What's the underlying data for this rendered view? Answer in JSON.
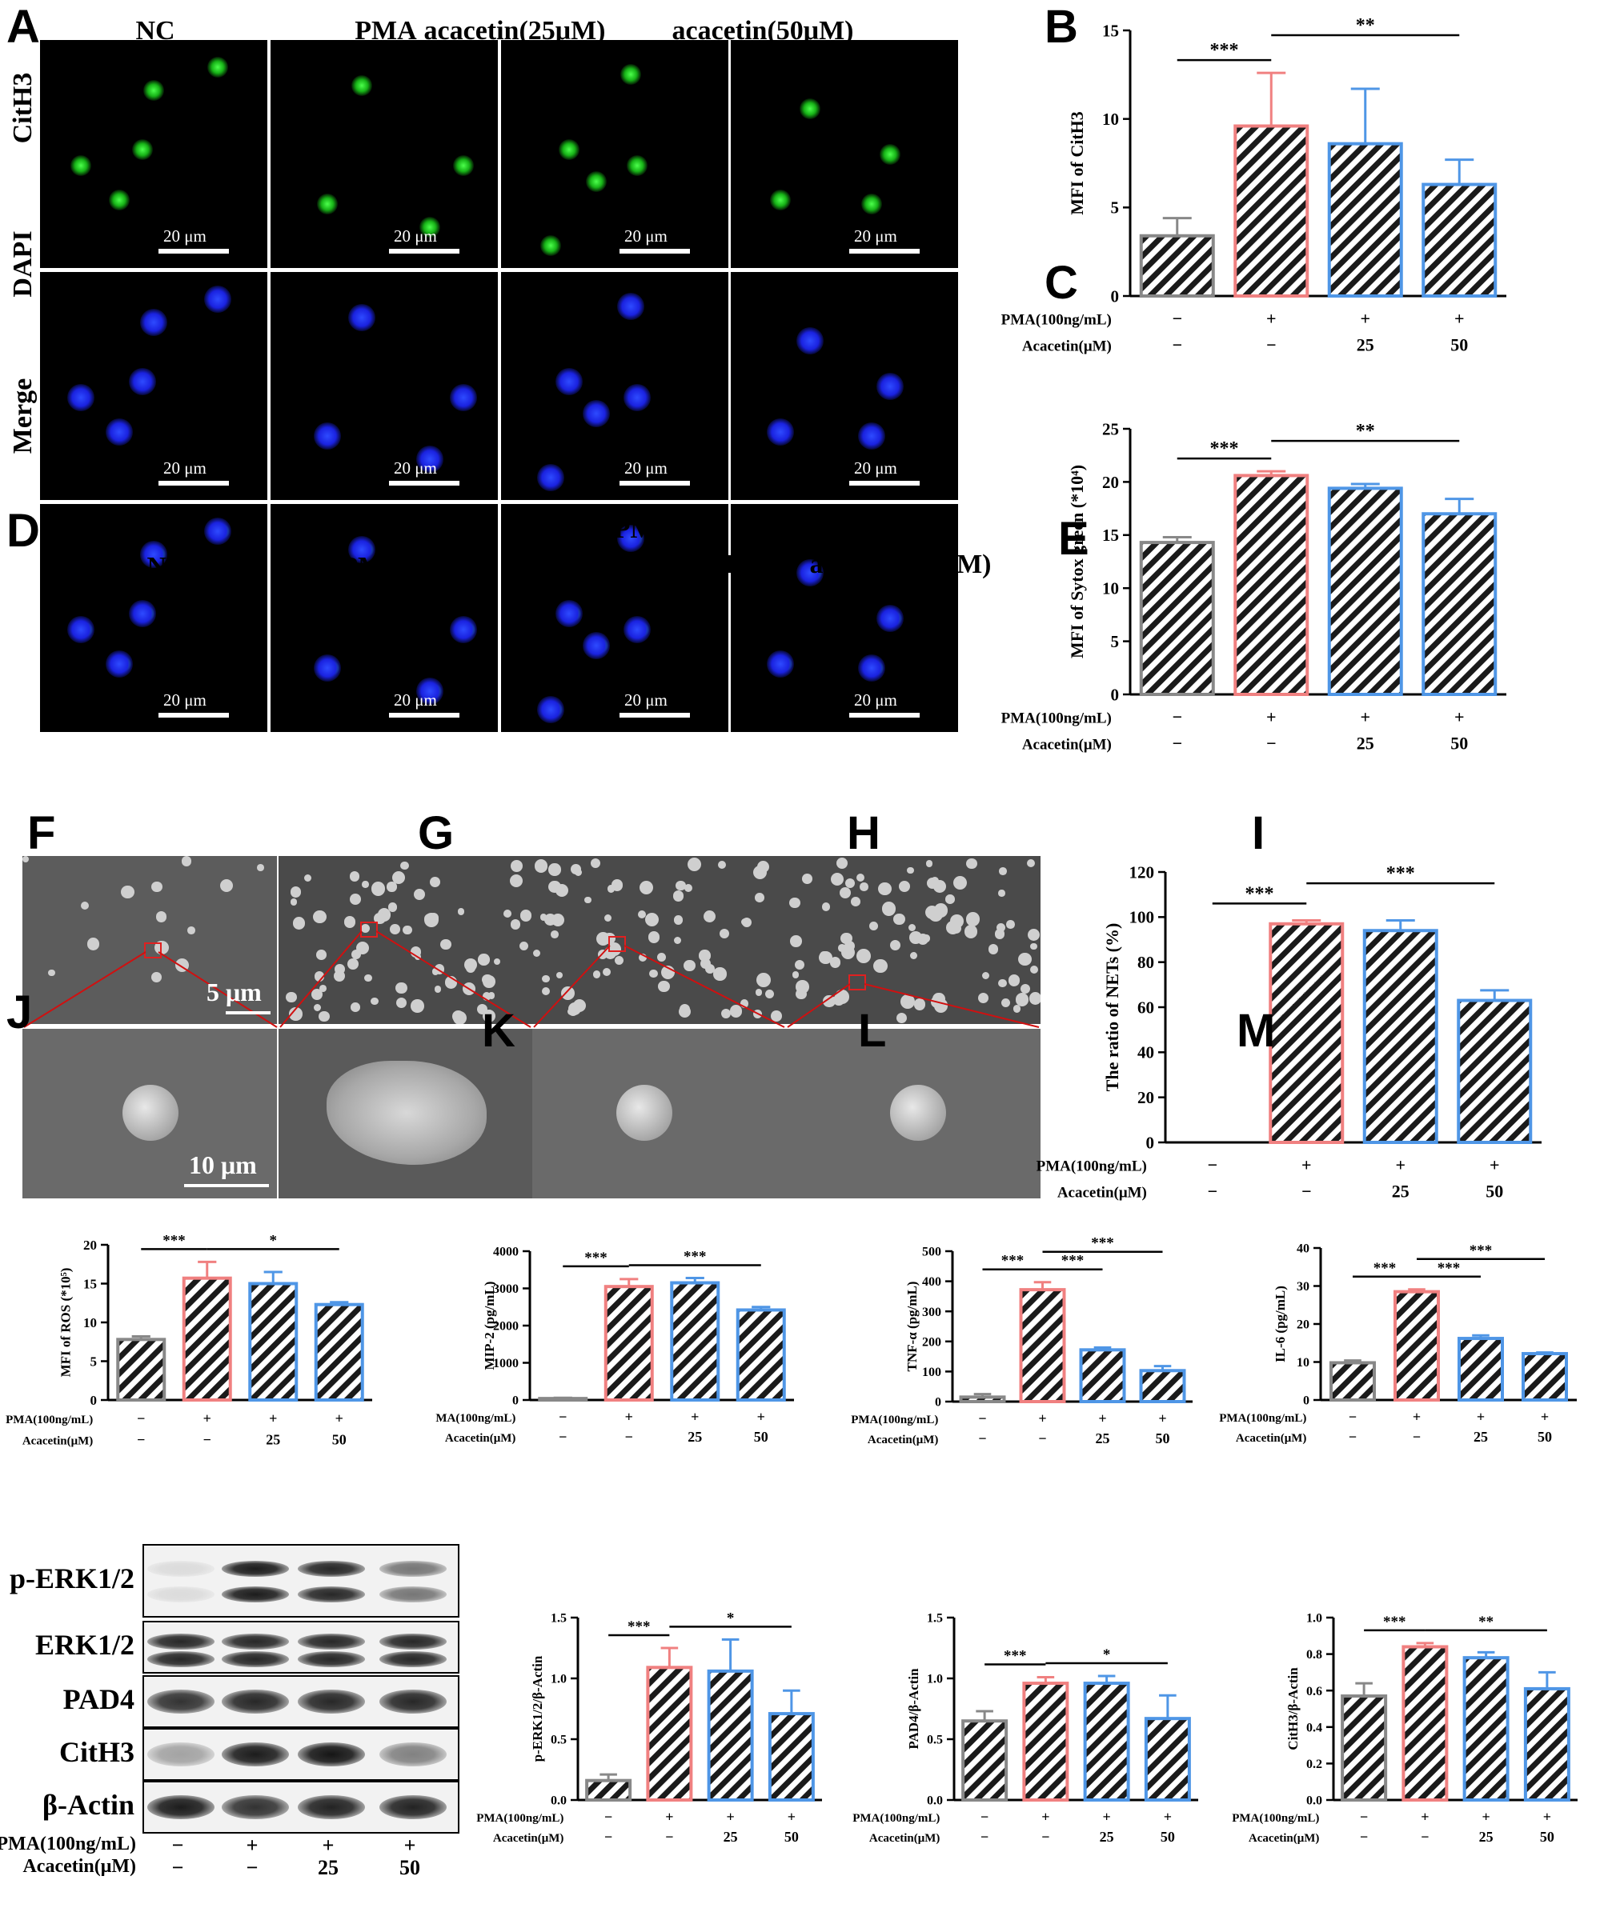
{
  "panel_labels": {
    "A": "A",
    "B": "B",
    "C": "C",
    "D": "D",
    "E": "E",
    "F": "F",
    "G": "G",
    "H": "H",
    "I": "I",
    "J": "J",
    "K": "K",
    "L": "L",
    "M": "M"
  },
  "panel_a": {
    "columns": [
      "NC",
      "PMA",
      "acacetin(25μM)",
      "acacetin(50μM)"
    ],
    "rows": [
      "CitH3",
      "DAPI",
      "Merge"
    ],
    "scale_text": "20 μm"
  },
  "panel_d": {
    "columns": [
      "NC",
      "PMA",
      "PMA+\nacacetin(25μM)",
      "PMA+\nacacetin(50μM)"
    ],
    "scale_top": "5 μm",
    "scale_bottom": "10 μm"
  },
  "panel_j": {
    "rows": [
      "p-ERK1/2",
      "ERK1/2",
      "PAD4",
      "CitH3",
      "β-Actin"
    ],
    "cond_rows": [
      {
        "label": "PMA(100ng/mL)",
        "signs": [
          "−",
          "+",
          "+",
          "+"
        ]
      },
      {
        "label": "Acacetin(μM)",
        "signs": [
          "−",
          "−",
          "25",
          "50"
        ]
      }
    ],
    "intensities": {
      "p-ERK1/2": [
        0.1,
        0.95,
        0.9,
        0.55
      ],
      "ERK1/2": [
        0.9,
        0.9,
        0.9,
        0.9
      ],
      "PAD4": [
        0.85,
        0.9,
        0.9,
        0.9
      ],
      "CitH3": [
        0.35,
        0.95,
        0.98,
        0.5
      ],
      "β-Actin": [
        0.95,
        0.85,
        0.92,
        0.92
      ]
    }
  },
  "colors": {
    "nc": "#888888",
    "pma": "#f08080",
    "acacetin": "#4f96e6"
  },
  "chart_data": [
    {
      "id": "B",
      "type": "bar",
      "ylabel": "MFI of CitH3",
      "ylim": [
        0,
        15
      ],
      "yticks": [
        0,
        5,
        10,
        15
      ],
      "values": [
        3.4,
        9.6,
        8.6,
        6.3
      ],
      "errors": [
        1.0,
        3.0,
        3.1,
        1.4
      ],
      "cond_rows": [
        {
          "label": "PMA(100ng/mL)",
          "signs": [
            "−",
            "+",
            "+",
            "+"
          ]
        },
        {
          "label": "Acacetin(μM)",
          "signs": [
            "−",
            "−",
            "25",
            "50"
          ]
        }
      ],
      "sig": [
        {
          "from": 0,
          "to": 1,
          "text": "***",
          "level": 0
        },
        {
          "from": 1,
          "to": 3,
          "text": "**",
          "level": 1
        }
      ]
    },
    {
      "id": "C",
      "type": "bar",
      "ylabel": "MFI of Sytox green (*10⁴)",
      "ylim": [
        0,
        25
      ],
      "yticks": [
        0,
        5,
        10,
        15,
        20,
        25
      ],
      "values": [
        14.3,
        20.6,
        19.4,
        17.0
      ],
      "errors": [
        0.5,
        0.4,
        0.4,
        1.4
      ],
      "cond_rows": [
        {
          "label": "PMA(100ng/mL)",
          "signs": [
            "−",
            "+",
            "+",
            "+"
          ]
        },
        {
          "label": "Acacetin(μM)",
          "signs": [
            "−",
            "−",
            "25",
            "50"
          ]
        }
      ],
      "sig": [
        {
          "from": 0,
          "to": 1,
          "text": "***",
          "level": 0
        },
        {
          "from": 1,
          "to": 3,
          "text": "**",
          "level": 1
        }
      ]
    },
    {
      "id": "E",
      "type": "bar",
      "ylabel": "The ratio of NETs (%)",
      "ylim": [
        0,
        120
      ],
      "yticks": [
        0,
        20,
        40,
        60,
        80,
        100,
        120
      ],
      "values": [
        0,
        97,
        94,
        63
      ],
      "errors": [
        0,
        1.5,
        4.5,
        4.5
      ],
      "cond_rows": [
        {
          "label": "PMA(100ng/mL)",
          "signs": [
            "−",
            "+",
            "+",
            "+"
          ]
        },
        {
          "label": "Acacetin(μM)",
          "signs": [
            "−",
            "−",
            "25",
            "50"
          ]
        }
      ],
      "sig": [
        {
          "from": 0,
          "to": 1,
          "text": "***",
          "level": 0
        },
        {
          "from": 1,
          "to": 3,
          "text": "***",
          "level": 1
        }
      ]
    },
    {
      "id": "F",
      "type": "bar",
      "ylabel": "MFI of ROS (*10⁵)",
      "ylim": [
        0,
        20
      ],
      "yticks": [
        0,
        5,
        10,
        15,
        20
      ],
      "values": [
        7.8,
        15.7,
        15.0,
        12.3
      ],
      "errors": [
        0.4,
        2.1,
        1.5,
        0.3
      ],
      "cond_rows": [
        {
          "label": "PMA(100ng/mL)",
          "signs": [
            "−",
            "+",
            "+",
            "+"
          ]
        },
        {
          "label": "Acacetin(μM)",
          "signs": [
            "−",
            "−",
            "25",
            "50"
          ]
        }
      ],
      "sig": [
        {
          "from": 0,
          "to": 1,
          "text": "***",
          "level": 0
        },
        {
          "from": 1,
          "to": 3,
          "text": "*",
          "level": 0
        }
      ]
    },
    {
      "id": "G",
      "type": "bar",
      "ylabel": "MIP-2 (pg/mL)",
      "ylim": [
        0,
        4000
      ],
      "yticks": [
        0,
        1000,
        2000,
        3000,
        4000
      ],
      "values": [
        40,
        3050,
        3150,
        2420
      ],
      "errors": [
        20,
        200,
        130,
        80
      ],
      "cond_rows": [
        {
          "label": "MA(100ng/mL)",
          "signs": [
            "−",
            "+",
            "+",
            "+"
          ]
        },
        {
          "label": "Acacetin(μM)",
          "signs": [
            "−",
            "−",
            "25",
            "50"
          ]
        }
      ],
      "sig": [
        {
          "from": 0,
          "to": 1,
          "text": "***",
          "level": 0
        },
        {
          "from": 1,
          "to": 3,
          "text": "***",
          "level": 0
        }
      ]
    },
    {
      "id": "H",
      "type": "bar",
      "ylabel": "TNF-α (pg/mL)",
      "ylim": [
        0,
        500
      ],
      "yticks": [
        0,
        100,
        200,
        300,
        400,
        500
      ],
      "values": [
        15,
        372,
        172,
        103
      ],
      "errors": [
        10,
        25,
        8,
        15
      ],
      "cond_rows": [
        {
          "label": "PMA(100ng/mL)",
          "signs": [
            "−",
            "+",
            "+",
            "+"
          ]
        },
        {
          "label": "Acacetin(μM)",
          "signs": [
            "−",
            "−",
            "25",
            "50"
          ]
        }
      ],
      "sig": [
        {
          "from": 0,
          "to": 1,
          "text": "***",
          "level": 0
        },
        {
          "from": 1,
          "to": 2,
          "text": "***",
          "level": 0
        },
        {
          "from": 1,
          "to": 3,
          "text": "***",
          "level": 1
        }
      ]
    },
    {
      "id": "I",
      "type": "bar",
      "ylabel": "IL-6 (pg/mL)",
      "ylim": [
        0,
        40
      ],
      "yticks": [
        0,
        10,
        20,
        30,
        40
      ],
      "values": [
        9.8,
        28.5,
        16.2,
        12.2
      ],
      "errors": [
        0.6,
        0.6,
        0.8,
        0.3
      ],
      "cond_rows": [
        {
          "label": "PMA(100ng/mL)",
          "signs": [
            "−",
            "+",
            "+",
            "+"
          ]
        },
        {
          "label": "Acacetin(μM)",
          "signs": [
            "−",
            "−",
            "25",
            "50"
          ]
        }
      ],
      "sig": [
        {
          "from": 0,
          "to": 1,
          "text": "***",
          "level": 0
        },
        {
          "from": 1,
          "to": 2,
          "text": "***",
          "level": 0
        },
        {
          "from": 1,
          "to": 3,
          "text": "***",
          "level": 1
        }
      ]
    },
    {
      "id": "K",
      "type": "bar",
      "ylabel": "p-ERK1/2/β-Actin",
      "ylim": [
        0,
        1.5
      ],
      "yticks": [
        "0.0",
        "0.5",
        "1.0",
        "1.5"
      ],
      "values": [
        0.16,
        1.09,
        1.06,
        0.71
      ],
      "errors": [
        0.05,
        0.16,
        0.26,
        0.19
      ],
      "cond_rows": [
        {
          "label": "PMA(100ng/mL)",
          "signs": [
            "−",
            "+",
            "+",
            "+"
          ]
        },
        {
          "label": "Acacetin(μM)",
          "signs": [
            "−",
            "−",
            "25",
            "50"
          ]
        }
      ],
      "sig": [
        {
          "from": 0,
          "to": 1,
          "text": "***",
          "level": 0
        },
        {
          "from": 1,
          "to": 3,
          "text": "*",
          "level": 0
        }
      ]
    },
    {
      "id": "L",
      "type": "bar",
      "ylabel": "PAD4/β-Actin",
      "ylim": [
        0,
        1.5
      ],
      "yticks": [
        "0.0",
        "0.5",
        "1.0",
        "1.5"
      ],
      "values": [
        0.65,
        0.96,
        0.96,
        0.67
      ],
      "errors": [
        0.08,
        0.05,
        0.06,
        0.19
      ],
      "cond_rows": [
        {
          "label": "PMA(100ng/mL)",
          "signs": [
            "−",
            "+",
            "+",
            "+"
          ]
        },
        {
          "label": "Acacetin(μM)",
          "signs": [
            "−",
            "−",
            "25",
            "50"
          ]
        }
      ],
      "sig": [
        {
          "from": 0,
          "to": 1,
          "text": "***",
          "level": 0
        },
        {
          "from": 1,
          "to": 3,
          "text": "*",
          "level": 0
        }
      ]
    },
    {
      "id": "M",
      "type": "bar",
      "ylabel": "CitH3/β-Actin",
      "ylim": [
        0,
        1.0
      ],
      "yticks": [
        "0.0",
        "0.2",
        "0.4",
        "0.6",
        "0.8",
        "1.0"
      ],
      "values": [
        0.57,
        0.84,
        0.78,
        0.61
      ],
      "errors": [
        0.07,
        0.02,
        0.03,
        0.09
      ],
      "cond_rows": [
        {
          "label": "PMA(100ng/mL)",
          "signs": [
            "−",
            "+",
            "+",
            "+"
          ]
        },
        {
          "label": "Acacetin(μM)",
          "signs": [
            "−",
            "−",
            "25",
            "50"
          ]
        }
      ],
      "sig": [
        {
          "from": 0,
          "to": 1,
          "text": "***",
          "level": 0
        },
        {
          "from": 1,
          "to": 3,
          "text": "**",
          "level": 0
        }
      ]
    }
  ]
}
